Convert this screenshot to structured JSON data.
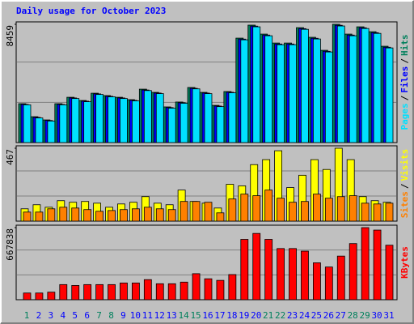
{
  "chart_data": {
    "type": "bar",
    "title": "Daily usage for October 2023",
    "categories": [
      "1",
      "2",
      "3",
      "4",
      "5",
      "6",
      "7",
      "8",
      "9",
      "10",
      "11",
      "12",
      "13",
      "14",
      "15",
      "16",
      "17",
      "18",
      "19",
      "20",
      "21",
      "22",
      "23",
      "24",
      "25",
      "26",
      "27",
      "28",
      "29",
      "30",
      "31"
    ],
    "category_colors": [
      "#00805c",
      "#0000ff",
      "#0000ff",
      "#0000ff",
      "#0000ff",
      "#0000ff",
      "#00805c",
      "#00805c",
      "#0000ff",
      "#0000ff",
      "#0000ff",
      "#0000ff",
      "#0000ff",
      "#00805c",
      "#00805c",
      "#0000ff",
      "#0000ff",
      "#0000ff",
      "#0000ff",
      "#0000ff",
      "#00805c",
      "#00805c",
      "#0000ff",
      "#0000ff",
      "#0000ff",
      "#0000ff",
      "#0000ff",
      "#00805c",
      "#00805c",
      "#0000ff",
      "#0000ff"
    ],
    "legend_separator": "/",
    "panels": [
      {
        "ylim": [
          0,
          8459
        ],
        "series": [
          {
            "name": "Hits",
            "color": "#00805c",
            "values": [
              2780,
              1850,
              1620,
              2780,
              3240,
              3010,
              3530,
              3360,
              3240,
              3070,
              3820,
              3590,
              2550,
              2900,
              3940,
              3590,
              2660,
              3650,
              7470,
              8400,
              7760,
              7120,
              7120,
              8220,
              7530,
              6600,
              8459,
              7760,
              8280,
              7930,
              6890
            ]
          },
          {
            "name": "Files",
            "color": "#0000ff",
            "values": [
              2730,
              1800,
              1580,
              2730,
              3190,
              2960,
              3480,
              3310,
              3190,
              3020,
              3760,
              3540,
              2500,
              2850,
              3880,
              3540,
              2610,
              3600,
              7400,
              8330,
              7690,
              7050,
              7050,
              8150,
              7460,
              6530,
              8390,
              7690,
              8210,
              7860,
              6820
            ]
          },
          {
            "name": "Pages",
            "color": "#00e0ff",
            "values": [
              2700,
              1760,
              1540,
              2700,
              3150,
              2920,
              3440,
              3270,
              3150,
              2980,
              3720,
              3500,
              2460,
              2810,
              3840,
              3500,
              2570,
              3560,
              7350,
              8280,
              7640,
              7000,
              7000,
              8100,
              7410,
              6480,
              8340,
              7640,
              8160,
              7810,
              6770
            ]
          }
        ]
      },
      {
        "ylim": [
          0,
          467
        ],
        "series": [
          {
            "name": "Visits",
            "color": "#ffff00",
            "values": [
              79,
              105,
              89,
              131,
              121,
              126,
              115,
              89,
              110,
              121,
              157,
              115,
              105,
              199,
              126,
              115,
              84,
              236,
              226,
              362,
              394,
              451,
              215,
              294,
              394,
              331,
              467,
              394,
              157,
              131,
              121
            ]
          },
          {
            "name": "Sites",
            "color": "#ff8000",
            "values": [
              58,
              58,
              79,
              89,
              84,
              74,
              63,
              68,
              74,
              79,
              89,
              79,
              74,
              126,
              126,
              121,
              53,
              142,
              173,
              163,
              199,
              147,
              121,
              126,
              173,
              147,
              157,
              163,
              115,
              110,
              115
            ]
          }
        ]
      },
      {
        "ylim": [
          0,
          667838
        ],
        "series": [
          {
            "name": "KBytes",
            "color": "#ff0000",
            "values": [
              62000,
              62000,
              70000,
              140000,
              132000,
              140000,
              140000,
              140000,
              155000,
              155000,
              186000,
              148000,
              148000,
              163000,
              241000,
              194000,
              179000,
              233000,
              559000,
              614000,
              559000,
              474000,
              474000,
              450000,
              342000,
              303000,
              404000,
              520000,
              667838,
              645000,
              505000
            ]
          }
        ]
      }
    ]
  }
}
